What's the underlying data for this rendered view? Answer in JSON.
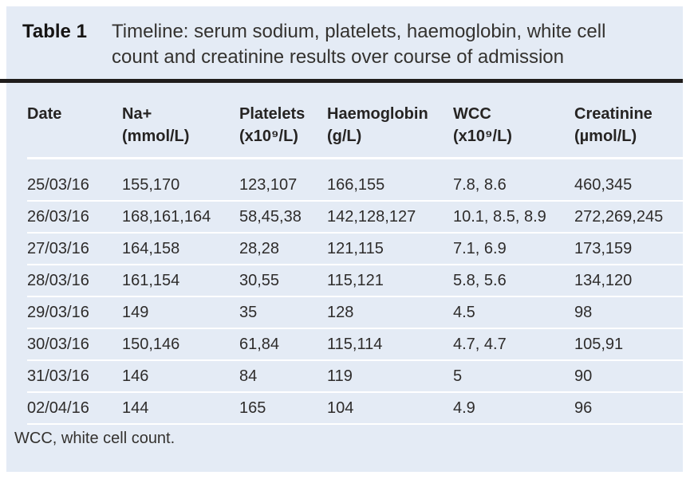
{
  "panel": {
    "title_label": "Table 1",
    "title_text": "Timeline: serum sodium, platelets, haemoglobin, white cell count and creatinine results over course of admission",
    "footnote": "WCC, white cell count."
  },
  "table": {
    "columns": [
      {
        "label": "Date",
        "unit": ""
      },
      {
        "label": "Na+",
        "unit": "(mmol/L)"
      },
      {
        "label": "Platelets",
        "unit": "(x10⁹/L)"
      },
      {
        "label": "Haemoglobin",
        "unit": "(g/L)"
      },
      {
        "label": "WCC",
        "unit": "(x10⁹/L)"
      },
      {
        "label": "Creatinine",
        "unit": "(µmol/L)"
      }
    ],
    "rows": [
      [
        "25/03/16",
        "155,170",
        "123,107",
        "166,155",
        "7.8, 8.6",
        "460,345"
      ],
      [
        "26/03/16",
        "168,161,164",
        "58,45,38",
        "142,128,127",
        "10.1, 8.5, 8.9",
        "272,269,245"
      ],
      [
        "27/03/16",
        "164,158",
        "28,28",
        "121,115",
        "7.1, 6.9",
        "173,159"
      ],
      [
        "28/03/16",
        "161,154",
        "30,55",
        "115,121",
        "5.8, 5.6",
        "134,120"
      ],
      [
        "29/03/16",
        "149",
        "35",
        "128",
        "4.5",
        "98"
      ],
      [
        "30/03/16",
        "150,146",
        "61,84",
        "115,114",
        "4.7, 4.7",
        "105,91"
      ],
      [
        "31/03/16",
        "146",
        "84",
        "119",
        "5",
        "90"
      ],
      [
        "02/04/16",
        "144",
        "165",
        "104",
        "4.9",
        "96"
      ]
    ]
  },
  "colors": {
    "panel_bg": "#e4ebf5",
    "text": "#2e2c2b",
    "rule": "#201d1c",
    "separator": "#ffffff"
  }
}
